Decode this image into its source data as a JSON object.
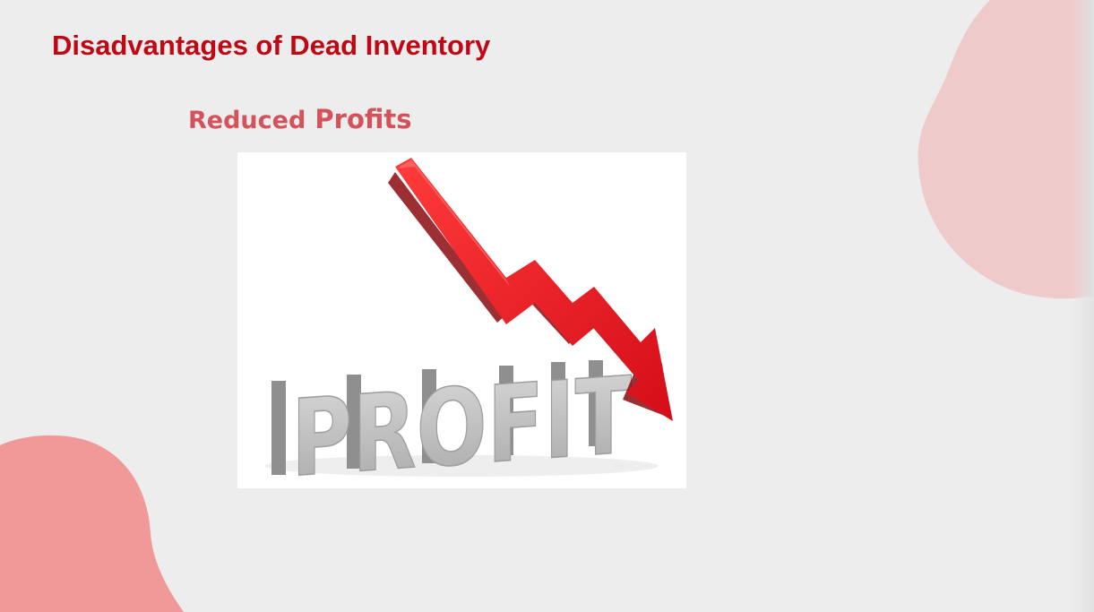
{
  "slide": {
    "title": "Disadvantages of Dead Inventory",
    "subtitle_word1": "Reduced",
    "subtitle_word2": "Profits"
  },
  "illustration": {
    "word": "PROFIT",
    "arrow_direction": "down",
    "arrow_color": "#e8121f",
    "letter_color": "#bdbdbd"
  },
  "colors": {
    "title": "#c00714",
    "subtitle": "#d4525a",
    "blob_top_right": "#efcacb",
    "blob_bottom_left": "#f19898",
    "background": "#ededed"
  }
}
